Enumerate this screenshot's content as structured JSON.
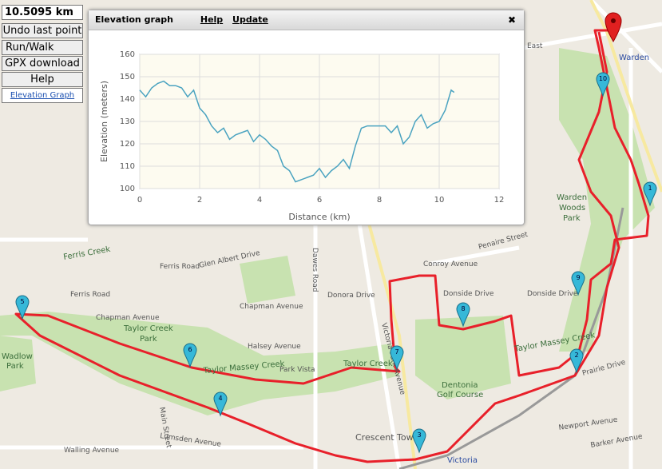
{
  "toolbar": {
    "distance": "10.5095 km",
    "undo": "Undo last point",
    "mode": "Run/Walk",
    "gpx": "GPX download",
    "help": "Help",
    "elevation_link": "Elevation Graph"
  },
  "dialog": {
    "title": "Elevation graph",
    "help": "Help",
    "update": "Update",
    "close": "✖"
  },
  "chart_data": {
    "type": "line",
    "x_label": "Distance (km)",
    "y_label": "Elevation (meters)",
    "color": "#4aa3c0",
    "grid": true,
    "x": [
      0,
      0.2,
      0.4,
      0.6,
      0.8,
      1.0,
      1.2,
      1.4,
      1.6,
      1.8,
      2.0,
      2.2,
      2.4,
      2.6,
      2.8,
      3.0,
      3.2,
      3.4,
      3.6,
      3.8,
      4.0,
      4.2,
      4.4,
      4.6,
      4.8,
      5.0,
      5.2,
      5.4,
      5.6,
      5.8,
      6.0,
      6.2,
      6.4,
      6.6,
      6.8,
      7.0,
      7.2,
      7.4,
      7.6,
      7.8,
      8.0,
      8.2,
      8.4,
      8.6,
      8.8,
      9.0,
      9.2,
      9.4,
      9.6,
      9.8,
      10.0,
      10.2,
      10.4,
      10.5
    ],
    "values": [
      144,
      141,
      145,
      147,
      148,
      146,
      146,
      145,
      141,
      144,
      136,
      133,
      128,
      125,
      127,
      122,
      124,
      125,
      126,
      121,
      124,
      122,
      119,
      117,
      110,
      108,
      103,
      104,
      105,
      106,
      109,
      105,
      108,
      110,
      113,
      109,
      119,
      127,
      128,
      128,
      128,
      128,
      125,
      128,
      120,
      123,
      130,
      133,
      127,
      129,
      130,
      135,
      144,
      143
    ],
    "xlim": [
      0,
      12
    ],
    "ylim": [
      100,
      160
    ],
    "xticks": [
      0,
      2,
      4,
      6,
      8,
      10,
      12
    ],
    "yticks": [
      100,
      110,
      120,
      130,
      140,
      150,
      160
    ]
  },
  "map": {
    "labels": [
      "Ferris Road",
      "Ferris Road",
      "Glen Albert Drive",
      "Chapman Avenue",
      "Halsey Avenue",
      "Taylor Creek",
      "Park",
      "Taylor Massey Creek",
      "Dawes Road",
      "Victoria Park Avenue",
      "Donora Drive",
      "Conroy Avenue",
      "Donside Drive",
      "Donside Drive",
      "Penaire Street",
      "Dentonia",
      "Golf Course",
      "Crescent Town",
      "Victoria",
      "Warden",
      "Warden",
      "Woods",
      "Park",
      "Lumsden Avenue",
      "Walling Avenue",
      "Main Street",
      "Newport Avenue",
      "Barker Avenue",
      "Prairie Drive",
      "Wadlow",
      "Park",
      "Park Vista",
      "Taylor Massey Creek",
      "Taylor Creek",
      "Ferris Creek",
      "Chapman Avenue",
      "East"
    ],
    "markers": [
      "1",
      "2",
      "3",
      "4",
      "5",
      "6",
      "7",
      "8",
      "9",
      "10"
    ]
  }
}
